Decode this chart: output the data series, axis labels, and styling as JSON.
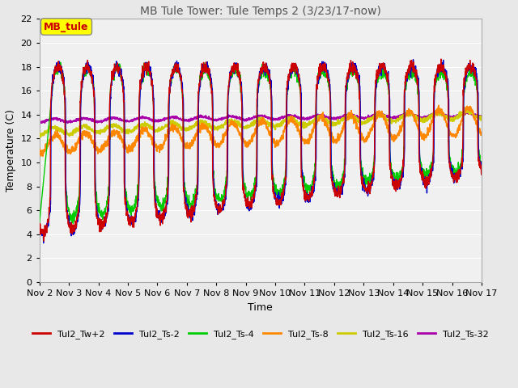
{
  "title": "MB Tule Tower: Tule Temps 2 (3/23/17-now)",
  "xlabel": "Time",
  "ylabel": "Temperature (C)",
  "ylim": [
    0,
    22
  ],
  "xlim": [
    0,
    15
  ],
  "xtick_labels": [
    "Nov 2",
    "Nov 3",
    "Nov 4",
    "Nov 5",
    "Nov 6",
    "Nov 7",
    "Nov 8",
    "Nov 9",
    "Nov 10",
    "Nov 11",
    "Nov 12",
    "Nov 13",
    "Nov 14",
    "Nov 15",
    "Nov 16",
    "Nov 17"
  ],
  "annotation_box": "MB_tule",
  "annotation_box_color": "#ffff00",
  "annotation_box_text_color": "#cc0000",
  "series_colors": {
    "Tul2_Tw+2": "#cc0000",
    "Tul2_Ts-2": "#0000cc",
    "Tul2_Ts-4": "#00cc00",
    "Tul2_Ts-8": "#ff8800",
    "Tul2_Ts-16": "#cccc00",
    "Tul2_Ts-32": "#aa00aa"
  },
  "fig_bg": "#e8e8e8",
  "plot_bg": "#f0f0f0",
  "grid_color": "#ffffff"
}
